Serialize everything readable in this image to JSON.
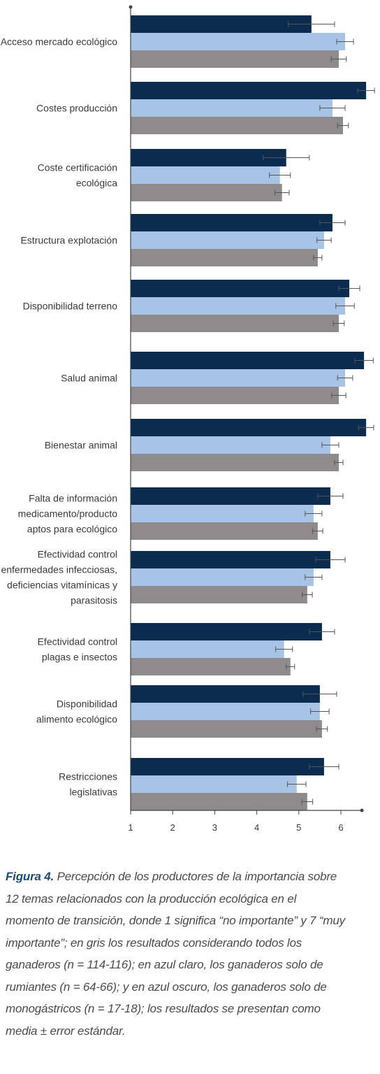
{
  "chart_data": {
    "type": "bar",
    "orientation": "horizontal",
    "xlim": [
      1,
      6.5
    ],
    "xticks": [
      "1",
      "2",
      "3",
      "4",
      "5",
      "6"
    ],
    "grid": false,
    "legend": "none",
    "categories": [
      [
        "Acceso mercado ecológico"
      ],
      [
        "Costes producción"
      ],
      [
        "Coste certificación",
        "ecológica"
      ],
      [
        "Estructura explotación"
      ],
      [
        "Disponibilidad terreno"
      ],
      [
        "Salud animal"
      ],
      [
        "Bienestar animal"
      ],
      [
        "Falta de información",
        "medicamento/producto",
        "aptos para ecológico"
      ],
      [
        "Efectividad control",
        "enfermedades infecciosas,",
        "deficiencias vitamínicas y",
        "parasitosis"
      ],
      [
        "Efectividad control",
        "plagas e insectos"
      ],
      [
        "Disponibilidad",
        "alimento ecológico"
      ],
      [
        "Restricciones",
        "legislativas"
      ]
    ],
    "series": [
      {
        "color": "#0b2c4f",
        "values": [
          5.3,
          6.6,
          4.7,
          5.8,
          6.2,
          6.55,
          6.6,
          5.75,
          5.75,
          5.55,
          5.5,
          5.6
        ],
        "errors": [
          0.55,
          0.2,
          0.55,
          0.3,
          0.25,
          0.22,
          0.18,
          0.3,
          0.35,
          0.3,
          0.4,
          0.35
        ]
      },
      {
        "color": "#a7c3e5",
        "values": [
          6.1,
          5.8,
          4.55,
          5.6,
          6.1,
          6.1,
          5.75,
          5.35,
          5.35,
          4.65,
          5.5,
          4.95
        ],
        "errors": [
          0.2,
          0.3,
          0.25,
          0.17,
          0.22,
          0.18,
          0.2,
          0.2,
          0.2,
          0.2,
          0.22,
          0.22
        ]
      },
      {
        "color": "#8f8a8c",
        "values": [
          5.95,
          6.05,
          4.6,
          5.45,
          5.95,
          5.95,
          5.95,
          5.45,
          5.2,
          4.8,
          5.55,
          5.2
        ],
        "errors": [
          0.18,
          0.13,
          0.17,
          0.1,
          0.13,
          0.17,
          0.1,
          0.12,
          0.12,
          0.1,
          0.13,
          0.13
        ]
      }
    ]
  },
  "caption": {
    "figure_label": "Figura 4.",
    "text": " Percepción de los productores de la importancia sobre 12 temas relacionados con la producción ecológica en el momento de transición, donde 1 significa “no importante” y 7 “muy importante”; en gris los resultados considerando todos los ganaderos (n = 114-116); en azul claro, los ganaderos solo de rumiantes (n = 64-66); y en azul oscuro, los ganaderos solo de monogástricos (n = 17-18); los resultados se presentan como media ± error estándar."
  }
}
